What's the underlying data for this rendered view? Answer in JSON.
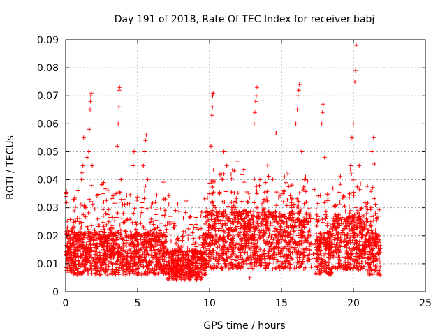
{
  "chart_data": {
    "type": "scatter",
    "title": "Day 191 of 2018, Rate Of TEC Index for receiver babj",
    "xlabel": "GPS time / hours",
    "ylabel": "ROTI / TECUs",
    "xlim": [
      0,
      25
    ],
    "ylim": [
      0,
      0.09
    ],
    "xticks": [
      "0",
      "5",
      "10",
      "15",
      "20",
      "25"
    ],
    "yticks": [
      "0",
      "0.01",
      "0.02",
      "0.03",
      "0.04",
      "0.05",
      "0.06",
      "0.07",
      "0.08",
      "0.09"
    ],
    "grid": true,
    "marker": "+",
    "color": "#ff0000",
    "series": [
      {
        "points": [
          [
            0.0,
            0.034
          ],
          [
            0.03,
            0.035
          ],
          [
            0.05,
            0.036
          ],
          [
            0.1,
            0.022
          ],
          [
            0.2,
            0.018
          ],
          [
            0.3,
            0.012
          ],
          [
            0.5,
            0.01
          ],
          [
            0.7,
            0.015
          ],
          [
            0.9,
            0.02
          ],
          [
            1.0,
            0.025
          ],
          [
            1.1,
            0.04
          ],
          [
            1.2,
            0.045
          ],
          [
            1.25,
            0.055
          ],
          [
            1.4,
            0.03
          ],
          [
            1.5,
            0.048
          ],
          [
            1.6,
            0.05
          ],
          [
            1.65,
            0.058
          ],
          [
            1.7,
            0.065
          ],
          [
            1.72,
            0.068
          ],
          [
            1.75,
            0.07
          ],
          [
            1.78,
            0.071
          ],
          [
            1.85,
            0.045
          ],
          [
            2.0,
            0.02
          ],
          [
            2.2,
            0.012
          ],
          [
            2.5,
            0.018
          ],
          [
            2.6,
            0.035
          ],
          [
            2.65,
            0.039
          ],
          [
            2.8,
            0.028
          ],
          [
            3.0,
            0.025
          ],
          [
            3.3,
            0.015
          ],
          [
            3.5,
            0.035
          ],
          [
            3.6,
            0.052
          ],
          [
            3.65,
            0.06
          ],
          [
            3.7,
            0.066
          ],
          [
            3.72,
            0.072
          ],
          [
            3.75,
            0.073
          ],
          [
            3.85,
            0.04
          ],
          [
            4.0,
            0.028
          ],
          [
            4.2,
            0.02
          ],
          [
            4.4,
            0.015
          ],
          [
            4.6,
            0.012
          ],
          [
            4.7,
            0.045
          ],
          [
            4.75,
            0.05
          ],
          [
            4.9,
            0.01
          ],
          [
            5.1,
            0.012
          ],
          [
            5.3,
            0.03
          ],
          [
            5.4,
            0.045
          ],
          [
            5.5,
            0.05
          ],
          [
            5.55,
            0.054
          ],
          [
            5.6,
            0.056
          ],
          [
            5.7,
            0.04
          ],
          [
            6.0,
            0.025
          ],
          [
            6.2,
            0.008
          ],
          [
            6.5,
            0.012
          ],
          [
            7.0,
            0.018
          ],
          [
            7.5,
            0.01
          ],
          [
            8.0,
            0.006
          ],
          [
            8.5,
            0.012
          ],
          [
            9.0,
            0.015
          ],
          [
            9.5,
            0.02
          ],
          [
            9.8,
            0.025
          ],
          [
            10.0,
            0.035
          ],
          [
            10.1,
            0.052
          ],
          [
            10.15,
            0.063
          ],
          [
            10.2,
            0.066
          ],
          [
            10.22,
            0.07
          ],
          [
            10.25,
            0.071
          ],
          [
            10.4,
            0.03
          ],
          [
            10.7,
            0.035
          ],
          [
            10.9,
            0.04
          ],
          [
            11.0,
            0.05
          ],
          [
            11.2,
            0.045
          ],
          [
            11.5,
            0.042
          ],
          [
            11.8,
            0.03
          ],
          [
            12.0,
            0.025
          ],
          [
            12.3,
            0.015
          ],
          [
            12.6,
            0.02
          ],
          [
            12.8,
            0.005
          ],
          [
            13.0,
            0.02
          ],
          [
            13.1,
            0.06
          ],
          [
            13.15,
            0.064
          ],
          [
            13.2,
            0.068
          ],
          [
            13.25,
            0.07
          ],
          [
            13.3,
            0.073
          ],
          [
            13.5,
            0.04
          ],
          [
            14.0,
            0.025
          ],
          [
            14.3,
            0.015
          ],
          [
            14.6,
            0.02
          ],
          [
            15.0,
            0.018
          ],
          [
            15.5,
            0.015
          ],
          [
            15.8,
            0.03
          ],
          [
            16.0,
            0.06
          ],
          [
            16.1,
            0.065
          ],
          [
            16.15,
            0.07
          ],
          [
            16.2,
            0.072
          ],
          [
            16.25,
            0.074
          ],
          [
            16.4,
            0.05
          ],
          [
            16.6,
            0.04
          ],
          [
            17.0,
            0.02
          ],
          [
            17.5,
            0.025
          ],
          [
            17.8,
            0.06
          ],
          [
            17.85,
            0.064
          ],
          [
            17.9,
            0.067
          ],
          [
            18.0,
            0.048
          ],
          [
            18.5,
            0.02
          ],
          [
            19.0,
            0.015
          ],
          [
            19.5,
            0.02
          ],
          [
            19.8,
            0.045
          ],
          [
            19.9,
            0.055
          ],
          [
            20.0,
            0.06
          ],
          [
            20.1,
            0.075
          ],
          [
            20.15,
            0.079
          ],
          [
            20.2,
            0.088
          ],
          [
            20.4,
            0.045
          ],
          [
            20.8,
            0.02
          ],
          [
            21.2,
            0.025
          ],
          [
            21.3,
            0.05
          ],
          [
            21.4,
            0.055
          ],
          [
            21.6,
            0.012
          ],
          [
            21.8,
            0.02
          ]
        ]
      }
    ]
  },
  "points_density": 3800
}
